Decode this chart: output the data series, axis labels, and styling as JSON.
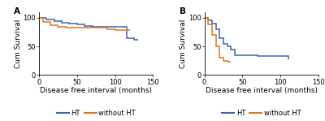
{
  "panel_A": {
    "HT": {
      "x": [
        0,
        10,
        20,
        30,
        40,
        50,
        60,
        70,
        80,
        90,
        100,
        110,
        115,
        125,
        130
      ],
      "y": [
        100,
        97,
        94,
        92,
        90,
        88,
        86,
        85,
        84,
        84,
        84,
        84,
        65,
        62,
        62
      ]
    },
    "without_HT": {
      "x": [
        0,
        5,
        15,
        25,
        35,
        55,
        90,
        100,
        120
      ],
      "y": [
        100,
        93,
        87,
        84,
        83,
        83,
        80,
        78,
        78
      ]
    }
  },
  "panel_B": {
    "HT": {
      "x": [
        0,
        5,
        10,
        15,
        20,
        25,
        30,
        35,
        40,
        65,
        70,
        105,
        110
      ],
      "y": [
        100,
        95,
        90,
        80,
        65,
        55,
        50,
        45,
        35,
        35,
        33,
        33,
        28
      ]
    },
    "without_HT": {
      "x": [
        0,
        5,
        10,
        15,
        20,
        25,
        30,
        35
      ],
      "y": [
        100,
        88,
        70,
        50,
        30,
        25,
        23,
        23
      ]
    }
  },
  "color_HT": "#4464A8",
  "color_without_HT": "#E07820",
  "xlim": [
    0,
    150
  ],
  "ylim": [
    0,
    110
  ],
  "xticks": [
    0,
    50,
    100,
    150
  ],
  "yticks": [
    0,
    50,
    100
  ],
  "xlabel": "Disease free interval (months)",
  "ylabel": "Cum Survival",
  "legend_HT": "HT",
  "legend_without_HT": "without HT",
  "label_A": "A",
  "label_B": "B",
  "tick_fontsize": 6,
  "label_fontsize": 6.5,
  "legend_fontsize": 6
}
